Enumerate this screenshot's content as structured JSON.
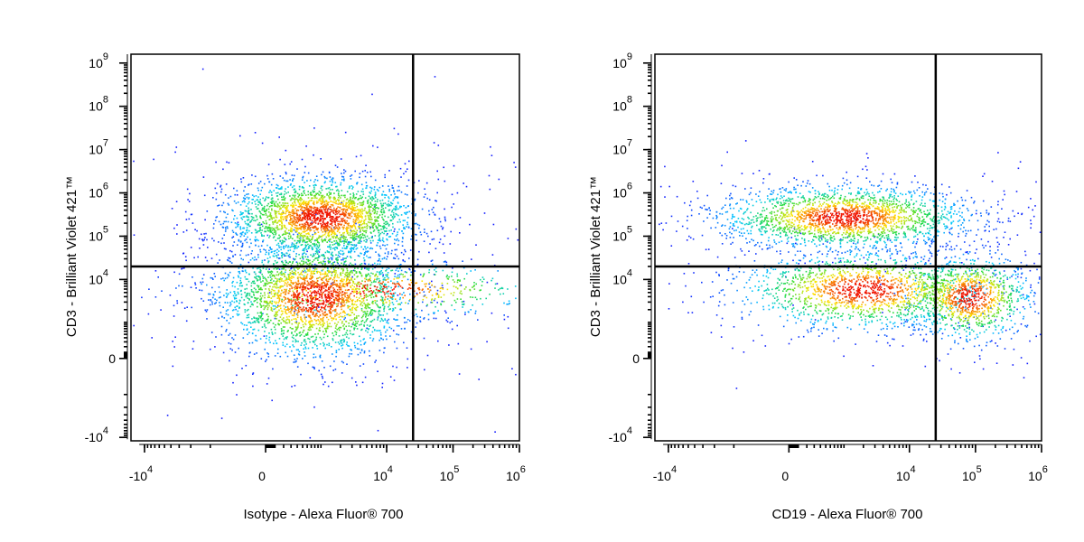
{
  "chart_data": [
    {
      "type": "scatter",
      "xlabel": "Isotype - Alexa Fluor® 700",
      "ylabel": "CD3 - Brilliant Violet 421™",
      "x_scale": "biexponential",
      "y_scale": "biexponential",
      "x_ticks": [
        {
          "value": -10000,
          "base": "-10",
          "exp": "4"
        },
        {
          "value": 0,
          "base": "0",
          "exp": ""
        },
        {
          "value": 10000,
          "base": "10",
          "exp": "4"
        },
        {
          "value": 100000,
          "base": "10",
          "exp": "5"
        },
        {
          "value": 1000000,
          "base": "10",
          "exp": "6"
        }
      ],
      "y_ticks": [
        {
          "value": -10000,
          "base": "-10",
          "exp": "4"
        },
        {
          "value": 0,
          "base": "0",
          "exp": ""
        },
        {
          "value": 10000,
          "base": "10",
          "exp": "4"
        },
        {
          "value": 100000,
          "base": "10",
          "exp": "5"
        },
        {
          "value": 1000000,
          "base": "10",
          "exp": "6"
        },
        {
          "value": 10000000,
          "base": "10",
          "exp": "7"
        },
        {
          "value": 100000000,
          "base": "10",
          "exp": "8"
        },
        {
          "value": 1000000000,
          "base": "10",
          "exp": "9"
        }
      ],
      "quadrant_gate": {
        "x": 25000,
        "y": 20000
      },
      "populations": [
        {
          "x": 1000,
          "y": 280000,
          "spread_x": 0.12,
          "spread_y": 0.1,
          "count": 2600
        },
        {
          "x": 800,
          "y": 4000,
          "spread_x": 0.12,
          "spread_y": 0.15,
          "count": 2600
        },
        {
          "x": 6000,
          "y": 6000,
          "spread_x": 0.22,
          "spread_y": 0.07,
          "count": 700
        }
      ]
    },
    {
      "type": "scatter",
      "xlabel": "CD19 - Alexa Fluor® 700",
      "ylabel": "CD3 - Brilliant Violet 421™",
      "x_scale": "biexponential",
      "y_scale": "biexponential",
      "x_ticks": [
        {
          "value": -10000,
          "base": "-10",
          "exp": "4"
        },
        {
          "value": 0,
          "base": "0",
          "exp": ""
        },
        {
          "value": 10000,
          "base": "10",
          "exp": "4"
        },
        {
          "value": 100000,
          "base": "10",
          "exp": "5"
        },
        {
          "value": 1000000,
          "base": "10",
          "exp": "6"
        }
      ],
      "y_ticks": [
        {
          "value": -10000,
          "base": "-10",
          "exp": "4"
        },
        {
          "value": 0,
          "base": "0",
          "exp": ""
        },
        {
          "value": 10000,
          "base": "10",
          "exp": "4"
        },
        {
          "value": 100000,
          "base": "10",
          "exp": "5"
        },
        {
          "value": 1000000,
          "base": "10",
          "exp": "6"
        },
        {
          "value": 10000000,
          "base": "10",
          "exp": "7"
        },
        {
          "value": 100000000,
          "base": "10",
          "exp": "8"
        },
        {
          "value": 1000000000,
          "base": "10",
          "exp": "9"
        }
      ],
      "quadrant_gate": {
        "x": 25000,
        "y": 20000
      },
      "populations": [
        {
          "x": 1000,
          "y": 280000,
          "spread_x": 0.16,
          "spread_y": 0.08,
          "count": 2200
        },
        {
          "x": 2000,
          "y": 6000,
          "spread_x": 0.16,
          "spread_y": 0.1,
          "count": 1700
        },
        {
          "x": 80000,
          "y": 4000,
          "spread_x": 0.08,
          "spread_y": 0.11,
          "count": 1100
        }
      ]
    }
  ]
}
